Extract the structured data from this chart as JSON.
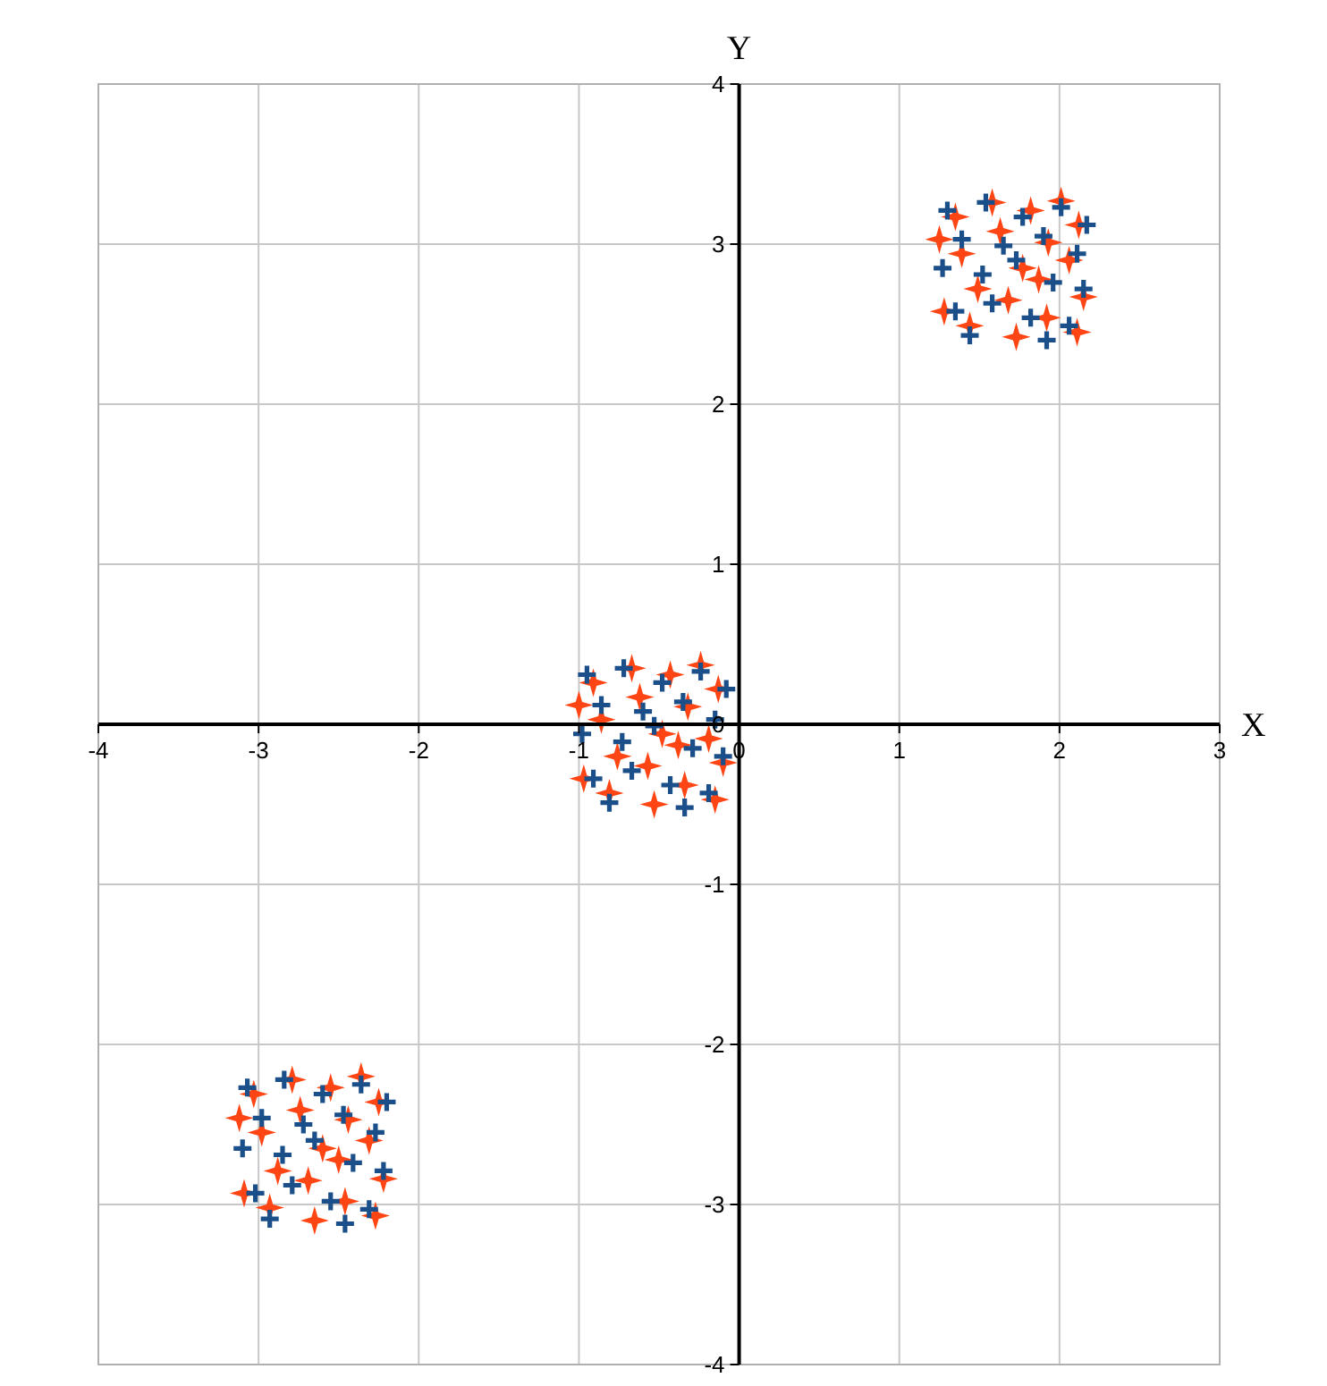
{
  "chart_data": {
    "type": "scatter",
    "xlabel": "X",
    "ylabel": "Y",
    "xlim": [
      -4,
      3
    ],
    "ylim": [
      -4,
      4
    ],
    "xticks": [
      -4,
      -3,
      -2,
      -1,
      0,
      1,
      2,
      3
    ],
    "yticks": [
      -4,
      -3,
      -2,
      -1,
      0,
      1,
      2,
      3,
      4
    ],
    "grid": true,
    "series": [
      {
        "color": "#ff4513",
        "marker": "star",
        "x": [
          2.11,
          2.15,
          2.06,
          2.12,
          2.01,
          1.92,
          1.87,
          1.93,
          1.82,
          1.73,
          1.68,
          1.77,
          1.63,
          1.58,
          1.44,
          1.49,
          1.39,
          1.35,
          1.28,
          1.25,
          -0.15,
          -0.1,
          -0.19,
          -0.13,
          -0.24,
          -0.34,
          -0.38,
          -0.32,
          -0.43,
          -0.53,
          -0.57,
          -0.48,
          -0.62,
          -0.67,
          -0.81,
          -0.76,
          -0.86,
          -0.91,
          -0.97,
          -1.0,
          -2.27,
          -2.22,
          -2.31,
          -2.25,
          -2.36,
          -2.46,
          -2.5,
          -2.44,
          -2.55,
          -2.65,
          -2.69,
          -2.6,
          -2.74,
          -2.79,
          -2.93,
          -2.88,
          -2.98,
          -3.03,
          -3.09,
          -3.12
        ],
        "values": [
          2.45,
          2.67,
          2.9,
          3.12,
          3.27,
          2.54,
          2.78,
          3.01,
          3.21,
          2.42,
          2.65,
          2.85,
          3.08,
          3.26,
          2.49,
          2.72,
          2.94,
          3.17,
          2.58,
          3.03,
          -0.47,
          -0.24,
          -0.09,
          0.22,
          0.37,
          -0.38,
          -0.13,
          0.11,
          0.31,
          -0.5,
          -0.26,
          -0.06,
          0.17,
          0.35,
          -0.43,
          -0.2,
          0.03,
          0.26,
          -0.34,
          0.12,
          -3.07,
          -2.84,
          -2.6,
          -2.36,
          -2.2,
          -2.98,
          -2.72,
          -2.47,
          -2.27,
          -3.1,
          -2.85,
          -2.65,
          -2.41,
          -2.22,
          -3.02,
          -2.79,
          -2.55,
          -2.31,
          -2.93,
          -2.46
        ]
      },
      {
        "color": "#1b4f8a",
        "marker": "cross",
        "x": [
          1.3,
          1.54,
          1.77,
          2.01,
          2.17,
          1.39,
          1.65,
          1.9,
          2.11,
          1.27,
          1.52,
          1.73,
          1.96,
          2.15,
          1.35,
          1.58,
          1.82,
          2.06,
          1.44,
          1.92,
          -0.95,
          -0.72,
          -0.48,
          -0.24,
          -0.08,
          -0.86,
          -0.6,
          -0.35,
          -0.15,
          -0.98,
          -0.73,
          -0.53,
          -0.29,
          -0.1,
          -0.91,
          -0.67,
          -0.43,
          -0.19,
          -0.81,
          -0.34,
          -3.07,
          -2.84,
          -2.6,
          -2.36,
          -2.2,
          -2.98,
          -2.72,
          -2.47,
          -2.27,
          -3.1,
          -2.85,
          -2.65,
          -2.41,
          -2.22,
          -3.02,
          -2.79,
          -2.55,
          -2.31,
          -2.93,
          -2.46
        ],
        "values": [
          3.21,
          3.26,
          3.17,
          3.23,
          3.12,
          3.03,
          2.99,
          3.05,
          2.94,
          2.85,
          2.81,
          2.9,
          2.76,
          2.72,
          2.58,
          2.63,
          2.54,
          2.49,
          2.43,
          2.4,
          0.31,
          0.35,
          0.26,
          0.33,
          0.22,
          0.12,
          0.08,
          0.14,
          0.03,
          -0.06,
          -0.11,
          -0.01,
          -0.15,
          -0.2,
          -0.34,
          -0.29,
          -0.38,
          -0.43,
          -0.49,
          -0.52,
          -2.27,
          -2.22,
          -2.31,
          -2.25,
          -2.36,
          -2.46,
          -2.5,
          -2.44,
          -2.55,
          -2.65,
          -2.69,
          -2.6,
          -2.74,
          -2.79,
          -2.93,
          -2.88,
          -2.98,
          -3.03,
          -3.09,
          -3.12
        ]
      }
    ]
  }
}
